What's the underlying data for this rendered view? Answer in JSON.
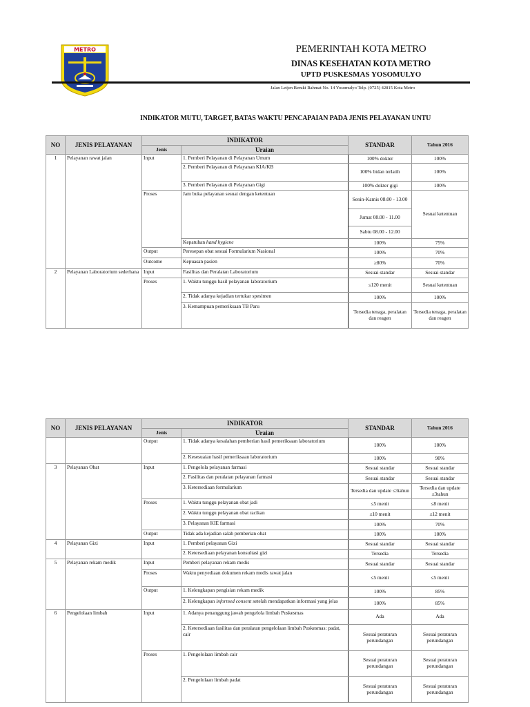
{
  "letterhead": {
    "logo_text": "METRO",
    "line1": "PEMERINTAH KOTA METRO",
    "line2": "DINAS KESEHATAN KOTA METRO",
    "line3": "UPTD PUSKESMAS YOSOMULYO",
    "address": "Jalan Letjen Beruki Rahmat No. 14 Yosomulyo Telp. (0725) 42815 Kota Metro"
  },
  "document_title": "INDIKATOR MUTU, TARGET, BATAS WAKTU PENCAPAIAN PADA JENIS PELAYANAN UNTU",
  "table_header": {
    "no": "NO",
    "jenis_pelayanan": "JENIS PELAYANAN",
    "indikator": "INDIKATOR",
    "jenis": "Jenis",
    "uraian": "Uraian",
    "standar": "STANDAR",
    "tahun": "Tahun 2016"
  },
  "tables": [
    {
      "services": [
        {
          "no": "1",
          "name": "Pelayanan rawat jalan",
          "groups": [
            {
              "jenis": "Input",
              "items": [
                {
                  "uraian": "1. Pemberi Pelayanan di Pelayanan Umum",
                  "standar": "100% dokter",
                  "tahun": "100%"
                },
                {
                  "uraian": "2. Pemberi Pelayanan di Pelayanan KIA/KB",
                  "standar": "100% bidan terlatih",
                  "tahun": "100%"
                },
                {
                  "uraian": "3. Pemberi Pelayanan di Pelayanan Gigi",
                  "standar": "100% dokter gigi",
                  "tahun": "100%"
                }
              ]
            },
            {
              "jenis": "Proses",
              "items": [
                {
                  "uraian": "Jam buka pelayanan sesuai dengan ketentuan",
                  "standar": [
                    "Senin-Kamis 08.00 - 13.00",
                    "Jumat 08.00 - 11.00",
                    "Sabtu 08.00 - 12.00"
                  ],
                  "tahun": "Sesuai ketentuan"
                },
                {
                  "uraian": "Kepatuhan ",
                  "uraian_em": "hand hygiene",
                  "standar": "100%",
                  "tahun": "75%"
                }
              ]
            },
            {
              "jenis": "Output",
              "items": [
                {
                  "uraian": "Peresepan obat sesuai Formularium Nasional",
                  "standar": "100%",
                  "tahun": "70%"
                }
              ]
            },
            {
              "jenis": "Outcome",
              "items": [
                {
                  "uraian": "Kepuasan pasien",
                  "standar": "≥80%",
                  "tahun": "70%"
                }
              ]
            }
          ]
        },
        {
          "no": "2",
          "name": "Pelayanan Laboratorium sederhana",
          "groups": [
            {
              "jenis": "Input",
              "items": [
                {
                  "uraian": "Fasilitas dan Peralatan Laboratorium",
                  "standar": "Sesuai standar",
                  "tahun": "Sesuai standar"
                }
              ]
            },
            {
              "jenis": "Proses",
              "items": [
                {
                  "uraian": "1. Waktu tunggu hasil pelayanan laboratorium",
                  "standar": "≤120 menit",
                  "tahun": "Sesuai ketentuan"
                },
                {
                  "uraian": "2. Tidak adanya kejadian tertukar spesimen",
                  "standar": "100%",
                  "tahun": "100%"
                },
                {
                  "uraian": "3. Kemampuan pemeriksaan TB Paru",
                  "standar": "Tersedia tenaga, peralatan dan reagen",
                  "tahun": "Tersedia tenaga, peralatan dan reagen"
                }
              ]
            }
          ]
        }
      ]
    },
    {
      "services": [
        {
          "no": "",
          "name": "",
          "groups": [
            {
              "jenis": "Output",
              "items": [
                {
                  "uraian": "1. Tidak adanya kesalahan pemberian hasil pemeriksaan laboratorium",
                  "standar": "100%",
                  "tahun": "100%"
                },
                {
                  "uraian": "2. Kesesuaian hasil pemeriksaan laboratorium",
                  "standar": "100%",
                  "tahun": "90%"
                }
              ]
            }
          ]
        },
        {
          "no": "3",
          "name": "Pelayanan Obat",
          "groups": [
            {
              "jenis": "Input",
              "items": [
                {
                  "uraian": "1. Pengelola pelayanan farmasi",
                  "standar": "Sesuai standar",
                  "tahun": "Sesuai standar"
                },
                {
                  "uraian": "2. Fasilitas dan peralatan pelayanan farmasi",
                  "standar": "Sesuai standar",
                  "tahun": "Sesuai standar"
                },
                {
                  "uraian": "3. Ketersediaan formularium",
                  "standar": "Tersedia dan update ≤3tahun",
                  "tahun": "Tersedia dan update ≤3tahun"
                }
              ]
            },
            {
              "jenis": "Proses",
              "items": [
                {
                  "uraian": "1. Waktu tunggu pelayanan obat jadi",
                  "standar": "≤5 menit",
                  "tahun": "≤8 menit"
                },
                {
                  "uraian": "2. Waktu tunggu pelayanan obat racikan",
                  "standar": "≤10 menit",
                  "tahun": "≤12 menit"
                },
                {
                  "uraian": "3. Pelayanan KIE farmasi",
                  "standar": "100%",
                  "tahun": "70%"
                }
              ]
            },
            {
              "jenis": "Output",
              "items": [
                {
                  "uraian": "Tidak ada kejadian salah pemberian obat",
                  "standar": "100%",
                  "tahun": "100%"
                }
              ]
            }
          ]
        },
        {
          "no": "4",
          "name": "Pelayanan Gizi",
          "groups": [
            {
              "jenis": "Input",
              "items": [
                {
                  "uraian": "1. Pemberi pelayanan Gizi",
                  "standar": "Sesuai standar",
                  "tahun": "Sesuai standar"
                },
                {
                  "uraian": "2. Ketersediaan pelayanan konsultasi gizi",
                  "standar": "Tersedia",
                  "tahun": "Tersedia"
                }
              ]
            }
          ]
        },
        {
          "no": "5",
          "name": "Pelayanan rekam medik",
          "groups": [
            {
              "jenis": "Input",
              "items": [
                {
                  "uraian": "Pemberi pelayanan rekam medis",
                  "standar": "Sesuai standar",
                  "tahun": "Sesuai standar"
                }
              ]
            },
            {
              "jenis": "Proses",
              "items": [
                {
                  "uraian": "Waktu penyediaan dokumen rekam medis rawat jalan",
                  "standar": "≤5 menit",
                  "tahun": "≤5 menit"
                }
              ]
            },
            {
              "jenis": "Output",
              "items": [
                {
                  "uraian": "1. Kelengkapan pengisian rekam medik",
                  "standar": "100%",
                  "tahun": "85%"
                },
                {
                  "uraian": "2. Kelengkapan ",
                  "uraian_em": "informed consent",
                  "uraian_after": " setelah mendapatkan informasi yang jelas",
                  "standar": "100%",
                  "tahun": "85%"
                }
              ]
            }
          ]
        },
        {
          "no": "6",
          "name": "Pengelolaan limbah",
          "groups": [
            {
              "jenis": "Input",
              "items": [
                {
                  "uraian": "1. Adanya penanggung jawab pengelola limbah Puskesmas",
                  "standar": "Ada",
                  "tahun": "Ada"
                },
                {
                  "uraian": "2. Ketersediaan fasilitas dan peralatan pengelolaan limbah Puskesmas: padat, cair",
                  "standar": "Sesuai peraturan perundangan",
                  "tahun": "Sesuai peraturan perundangan"
                }
              ]
            },
            {
              "jenis": "Proses",
              "items": [
                {
                  "uraian": "1. Pengelolaan limbah cair",
                  "standar": "Sesuai peraturan perundangan",
                  "tahun": "Sesuai peraturan perundangan"
                },
                {
                  "uraian": "2. Pengelolaan limbah padat",
                  "standar": "Sesuai peraturan perundangan",
                  "tahun": "Sesuai peraturan perundangan"
                }
              ]
            }
          ]
        }
      ]
    }
  ]
}
